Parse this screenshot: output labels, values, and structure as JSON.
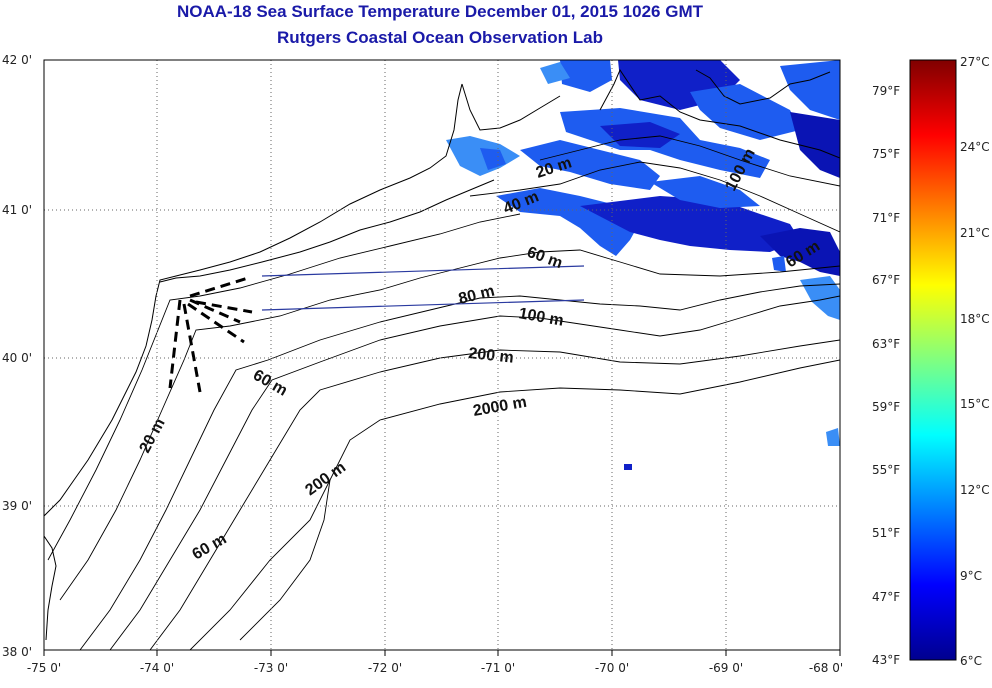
{
  "header": {
    "title": "NOAA-18 Sea Surface Temperature December 01, 2015 1026 GMT",
    "subtitle": "Rutgers Coastal Ocean Observation Lab"
  },
  "map": {
    "lat_labels": [
      "42 0'",
      "41 0'",
      "40 0'",
      "39 0'",
      "38 0'"
    ],
    "lon_labels": [
      "-75 0'",
      "-74 0'",
      "-73 0'",
      "-72 0'",
      "-71 0'",
      "-70 0'",
      "-69 0'",
      "-68 0'"
    ],
    "lat_range": [
      38,
      42
    ],
    "lon_range": [
      -75,
      -68
    ],
    "contour_labels": [
      "20 m",
      "40 m",
      "60 m",
      "80 m",
      "100 m",
      "200 m",
      "2000 m",
      "60 m",
      "200 m",
      "60 m",
      "20 m",
      "60 m",
      "100 m"
    ],
    "land_color": "#ffffff",
    "sst_colors": [
      "#1020c8",
      "#1e5cf0",
      "#3a8ef6",
      "#0a14b4"
    ]
  },
  "colorbar": {
    "celsius_labels": [
      "27°C",
      "24°C",
      "21°C",
      "18°C",
      "15°C",
      "12°C",
      "9°C",
      "6°C"
    ],
    "fahrenheit_labels": [
      "79°F",
      "75°F",
      "71°F",
      "67°F",
      "63°F",
      "59°F",
      "55°F",
      "51°F",
      "47°F",
      "43°F"
    ],
    "range_c": [
      6,
      27
    ]
  }
}
